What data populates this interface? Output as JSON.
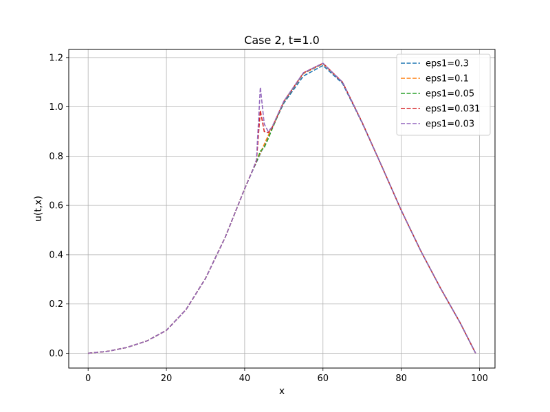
{
  "chart_data": {
    "type": "line",
    "title": "Case 2, t=1.0",
    "xlabel": "x",
    "ylabel": "u(t,x)",
    "xlim": [
      -4.95,
      103.95
    ],
    "ylim": [
      -0.06,
      1.233
    ],
    "xticks": [
      0,
      20,
      40,
      60,
      80,
      100
    ],
    "yticks": [
      0.0,
      0.2,
      0.4,
      0.6,
      0.8,
      1.0,
      1.2
    ],
    "grid": true,
    "legend_position": "top-right",
    "line_style": "dashed",
    "x": [
      0,
      5,
      10,
      15,
      20,
      25,
      30,
      35,
      40,
      42,
      43,
      44,
      45,
      46,
      47,
      50,
      55,
      60,
      65,
      70,
      75,
      80,
      85,
      90,
      95,
      99
    ],
    "series": [
      {
        "name": "eps1=0.3",
        "color": "#1f77b4",
        "values": [
          0.0,
          0.008,
          0.024,
          0.05,
          0.093,
          0.177,
          0.304,
          0.47,
          0.668,
          0.74,
          0.775,
          0.81,
          0.845,
          0.88,
          0.915,
          1.015,
          1.125,
          1.168,
          1.095,
          0.935,
          0.76,
          0.58,
          0.415,
          0.265,
          0.125,
          0.0
        ]
      },
      {
        "name": "eps1=0.1",
        "color": "#ff7f0e",
        "values": [
          0.0,
          0.008,
          0.024,
          0.05,
          0.093,
          0.177,
          0.304,
          0.47,
          0.668,
          0.742,
          0.778,
          0.813,
          0.848,
          0.883,
          0.918,
          1.02,
          1.135,
          1.175,
          1.1,
          0.937,
          0.76,
          0.58,
          0.415,
          0.265,
          0.125,
          0.0
        ]
      },
      {
        "name": "eps1=0.05",
        "color": "#2ca02c",
        "values": [
          0.0,
          0.008,
          0.024,
          0.05,
          0.093,
          0.177,
          0.304,
          0.47,
          0.668,
          0.742,
          0.778,
          0.82,
          0.835,
          0.87,
          0.91,
          1.02,
          1.137,
          1.176,
          1.1,
          0.937,
          0.76,
          0.58,
          0.415,
          0.265,
          0.125,
          0.0
        ]
      },
      {
        "name": "eps1=0.031",
        "color": "#d62728",
        "values": [
          0.0,
          0.008,
          0.024,
          0.05,
          0.093,
          0.177,
          0.304,
          0.47,
          0.668,
          0.742,
          0.78,
          0.985,
          0.9,
          0.895,
          0.915,
          1.022,
          1.138,
          1.177,
          1.1,
          0.937,
          0.76,
          0.58,
          0.415,
          0.265,
          0.125,
          0.0
        ]
      },
      {
        "name": "eps1=0.03",
        "color": "#9467bd",
        "values": [
          0.0,
          0.008,
          0.024,
          0.05,
          0.093,
          0.177,
          0.304,
          0.47,
          0.668,
          0.742,
          0.785,
          1.08,
          0.93,
          0.9,
          0.918,
          1.023,
          1.138,
          1.177,
          1.1,
          0.937,
          0.76,
          0.58,
          0.415,
          0.265,
          0.125,
          0.0
        ]
      }
    ]
  }
}
